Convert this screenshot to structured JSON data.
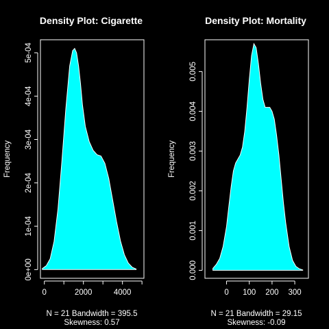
{
  "chart_data": [
    {
      "type": "area",
      "title": "Density Plot: Cigarette",
      "xlabel": "",
      "ylabel": "Frequency",
      "xlim": [
        -200,
        5100
      ],
      "ylim": [
        -2e-05,
        0.00053
      ],
      "xticks": [
        0,
        1000,
        2000,
        3000,
        4000,
        5000
      ],
      "xtick_labels": [
        "0",
        "",
        "2000",
        "",
        "4000",
        ""
      ],
      "yticks": [
        0,
        0.0001,
        0.0002,
        0.0003,
        0.0004,
        0.0005
      ],
      "ytick_labels": [
        "0e+00",
        "1e-04",
        "2e-04",
        "3e-04",
        "4e-04",
        "5e-04"
      ],
      "fill_color": "#00ffff",
      "line_color": "#ffffff",
      "x": [
        -100,
        100,
        300,
        500,
        700,
        900,
        1100,
        1300,
        1450,
        1550,
        1650,
        1750,
        1850,
        1950,
        2100,
        2300,
        2500,
        2700,
        2900,
        3100,
        3300,
        3500,
        3700,
        3900,
        4100,
        4300,
        4500,
        4700
      ],
      "y": [
        2.5e-06,
        9e-06,
        2.5e-05,
        6.5e-05,
        0.00014,
        0.00025,
        0.00037,
        0.00047,
        0.000505,
        0.00051,
        0.0005,
        0.00047,
        0.00043,
        0.00038,
        0.00033,
        0.000295,
        0.000275,
        0.000265,
        0.000262,
        0.000245,
        0.00021,
        0.00016,
        0.00011,
        6.6e-05,
        3.4e-05,
        1.5e-05,
        5.5e-06,
        1.5e-06
      ],
      "footer": [
        "N = 21   Bandwidth = 395.5",
        "Skewness: 0.57"
      ]
    },
    {
      "type": "area",
      "title": "Density Plot: Mortality",
      "xlabel": "",
      "ylabel": "Frequency",
      "xlim": [
        -95,
        360
      ],
      "ylim": [
        -0.0002,
        0.0058
      ],
      "xticks": [
        0,
        100,
        200,
        300
      ],
      "xtick_labels": [
        "0",
        "100",
        "200",
        "300"
      ],
      "yticks": [
        0,
        0.001,
        0.002,
        0.003,
        0.004,
        0.005
      ],
      "ytick_labels": [
        "0.000",
        "0.001",
        "0.002",
        "0.003",
        "0.004",
        "0.005"
      ],
      "fill_color": "#00ffff",
      "line_color": "#ffffff",
      "x": [
        -60,
        -45,
        -30,
        -15,
        0,
        10,
        20,
        30,
        40,
        50,
        60,
        70,
        80,
        90,
        100,
        110,
        120,
        130,
        140,
        150,
        160,
        170,
        180,
        190,
        200,
        210,
        220,
        230,
        240,
        250,
        260,
        275,
        290,
        305,
        320,
        335
      ],
      "y": [
        5e-05,
        0.00015,
        0.0003,
        0.0006,
        0.0011,
        0.0016,
        0.0021,
        0.0025,
        0.0027,
        0.0028,
        0.0029,
        0.0031,
        0.0035,
        0.0041,
        0.0048,
        0.0054,
        0.0057,
        0.0056,
        0.0052,
        0.0047,
        0.0043,
        0.0041,
        0.0041,
        0.0041,
        0.004,
        0.0038,
        0.0034,
        0.0029,
        0.0023,
        0.0017,
        0.0012,
        0.0006,
        0.00025,
        0.0001,
        4e-05,
        1e-05
      ],
      "footer": [
        "N = 21   Bandwidth = 29.15",
        "Skewness: -0.09"
      ]
    }
  ]
}
